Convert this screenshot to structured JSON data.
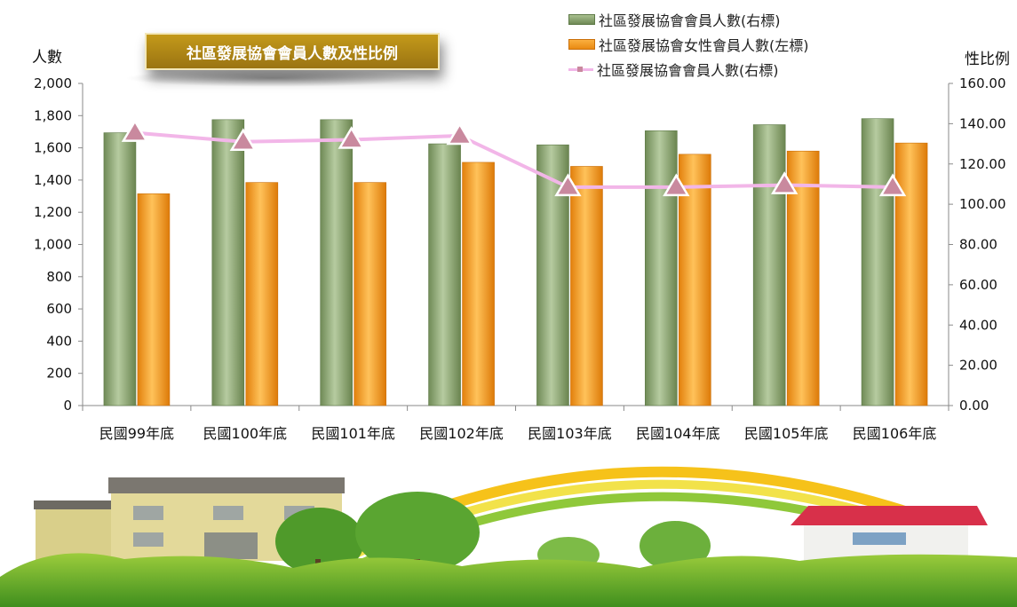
{
  "chart_data": {
    "type": "bar",
    "title": "社區發展協會會員人數及性比例",
    "categories": [
      "民國99年底",
      "民國100年底",
      "民國101年底",
      "民國102年底",
      "民國103年底",
      "民國104年底",
      "民國105年底",
      "民國106年底"
    ],
    "series": [
      {
        "name": "社區發展協會會員人數(右標)",
        "type": "bar",
        "axis": "right",
        "color": "#8faa72",
        "values": [
          135.5,
          142,
          142,
          130,
          129.5,
          136.5,
          139.5,
          142.5
        ]
      },
      {
        "name": "社區發展協會女性會員人數(左標)",
        "type": "bar",
        "axis": "left",
        "color": "#f7a12a",
        "values": [
          1315,
          1385,
          1385,
          1510,
          1485,
          1560,
          1580,
          1630
        ]
      },
      {
        "name": "社區發展協會會員人數(右標)",
        "type": "line",
        "axis": "right",
        "color": "#f2b6e8",
        "marker_color": "#c9899e",
        "values": [
          135.5,
          131,
          132,
          134,
          108.5,
          108.5,
          109.5,
          108.5
        ]
      }
    ],
    "ylabel_left": "人數",
    "ylabel_right": "性比例",
    "ylim_left": [
      0,
      2000
    ],
    "ylim_right": [
      0,
      160
    ],
    "yticks_left": [
      "0",
      "200",
      "400",
      "600",
      "800",
      "1,000",
      "1,200",
      "1,400",
      "1,600",
      "1,800",
      "2,000"
    ],
    "yticks_right": [
      "0.00",
      "20.00",
      "40.00",
      "60.00",
      "80.00",
      "100.00",
      "120.00",
      "140.00",
      "160.00"
    ],
    "grid": false,
    "legend_position": "top-right"
  }
}
